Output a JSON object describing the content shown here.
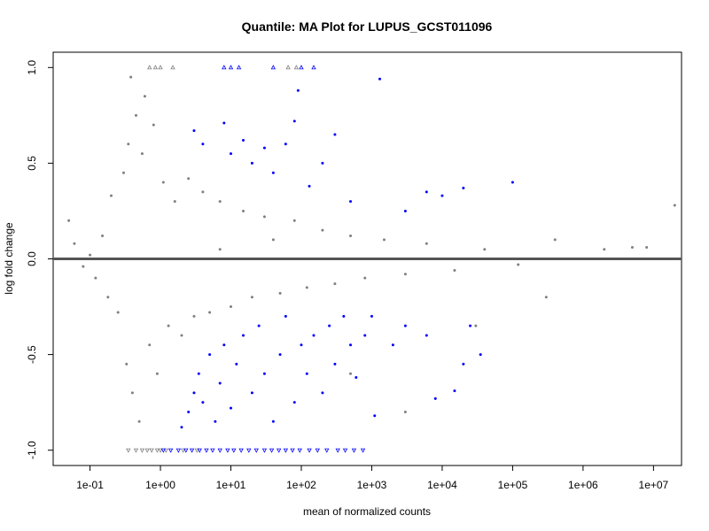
{
  "chart_data": {
    "type": "scatter",
    "title": "Quantile: MA Plot for LUPUS_GCST011096",
    "xlabel": "mean of normalized counts",
    "ylabel": "log fold change",
    "x_scale": "log",
    "xlim": [
      0.03,
      25000000
    ],
    "ylim": [
      -1.08,
      1.08
    ],
    "x_ticks": [
      {
        "value": 0.1,
        "label": "1e-01"
      },
      {
        "value": 1,
        "label": "1e+00"
      },
      {
        "value": 10,
        "label": "1e+01"
      },
      {
        "value": 100,
        "label": "1e+02"
      },
      {
        "value": 1000,
        "label": "1e+03"
      },
      {
        "value": 10000,
        "label": "1e+04"
      },
      {
        "value": 100000,
        "label": "1e+05"
      },
      {
        "value": 1000000,
        "label": "1e+06"
      },
      {
        "value": 10000000,
        "label": "1e+07"
      }
    ],
    "y_ticks": [
      {
        "value": -1.0,
        "label": "-1.0"
      },
      {
        "value": -0.5,
        "label": "-0.5"
      },
      {
        "value": 0.0,
        "label": "0.0"
      },
      {
        "value": 0.5,
        "label": "0.5"
      },
      {
        "value": 1.0,
        "label": "1.0"
      }
    ],
    "reference_line": {
      "y": 0,
      "color": "#555555"
    },
    "colors": {
      "nonsignificant": "#7f7f7f",
      "significant": "#0000ff",
      "reference_line": "#555555"
    },
    "grid": false,
    "legend": "none",
    "series": [
      {
        "points": [
          [
            0.05,
            0.2
          ],
          [
            0.06,
            0.08
          ],
          [
            0.08,
            -0.04
          ],
          [
            0.1,
            0.02
          ],
          [
            0.12,
            -0.1
          ],
          [
            0.15,
            0.12
          ],
          [
            0.18,
            -0.2
          ],
          [
            0.2,
            0.33
          ],
          [
            0.25,
            -0.28
          ],
          [
            0.3,
            0.45
          ],
          [
            0.33,
            -0.55
          ],
          [
            0.35,
            0.6
          ],
          [
            0.38,
            0.95
          ],
          [
            0.4,
            -0.7
          ],
          [
            0.45,
            0.75
          ],
          [
            0.5,
            -0.85
          ],
          [
            0.55,
            0.55
          ],
          [
            0.6,
            0.85
          ],
          [
            0.7,
            -0.45
          ],
          [
            0.8,
            0.7
          ],
          [
            0.9,
            -0.6
          ],
          [
            1.1,
            0.4
          ],
          [
            1.3,
            -0.35
          ],
          [
            1.6,
            0.3
          ],
          [
            2,
            -0.4
          ],
          [
            2.5,
            0.42
          ],
          [
            3,
            -0.3
          ],
          [
            4,
            0.35
          ],
          [
            5,
            -0.28
          ],
          [
            7,
            0.3
          ],
          [
            10,
            -0.25
          ],
          [
            15,
            0.25
          ],
          [
            20,
            -0.2
          ],
          [
            30,
            0.22
          ],
          [
            50,
            -0.18
          ],
          [
            80,
            0.2
          ],
          [
            120,
            -0.15
          ],
          [
            200,
            0.15
          ],
          [
            300,
            -0.13
          ],
          [
            500,
            0.12
          ],
          [
            800,
            -0.1
          ],
          [
            1500,
            0.1
          ],
          [
            3000,
            -0.08
          ],
          [
            6000,
            0.08
          ],
          [
            15000,
            -0.06
          ],
          [
            40000,
            0.05
          ],
          [
            120000,
            -0.03
          ],
          [
            400000,
            0.1
          ],
          [
            2000000,
            0.05
          ],
          [
            5000000,
            0.06
          ],
          [
            20000000,
            0.28
          ],
          [
            8000000,
            0.06
          ],
          [
            300000,
            -0.2
          ],
          [
            30000,
            -0.35
          ],
          [
            3000,
            -0.8
          ],
          [
            500,
            -0.6
          ],
          [
            40,
            0.1
          ],
          [
            7,
            0.05
          ]
        ]
      },
      {
        "points": [
          [
            2,
            -0.88
          ],
          [
            2.5,
            -0.8
          ],
          [
            3,
            -0.7
          ],
          [
            3.5,
            -0.6
          ],
          [
            4,
            -0.75
          ],
          [
            5,
            -0.5
          ],
          [
            6,
            -0.85
          ],
          [
            7,
            -0.65
          ],
          [
            8,
            -0.45
          ],
          [
            10,
            -0.78
          ],
          [
            12,
            -0.55
          ],
          [
            15,
            -0.4
          ],
          [
            20,
            -0.7
          ],
          [
            25,
            -0.35
          ],
          [
            30,
            -0.6
          ],
          [
            40,
            -0.85
          ],
          [
            50,
            -0.5
          ],
          [
            60,
            -0.3
          ],
          [
            80,
            -0.75
          ],
          [
            100,
            -0.45
          ],
          [
            120,
            -0.6
          ],
          [
            150,
            -0.4
          ],
          [
            200,
            -0.7
          ],
          [
            250,
            -0.35
          ],
          [
            300,
            -0.55
          ],
          [
            400,
            -0.3
          ],
          [
            500,
            -0.45
          ],
          [
            600,
            -0.62
          ],
          [
            800,
            -0.4
          ],
          [
            1000,
            -0.3
          ],
          [
            1100,
            -0.82
          ],
          [
            2000,
            -0.45
          ],
          [
            3000,
            -0.35
          ],
          [
            6000,
            -0.4
          ],
          [
            8000,
            -0.73
          ],
          [
            15000,
            -0.69
          ],
          [
            20000,
            -0.55
          ],
          [
            25000,
            -0.35
          ],
          [
            35000,
            -0.5
          ],
          [
            3,
            0.67
          ],
          [
            4,
            0.6
          ],
          [
            8,
            0.71
          ],
          [
            10,
            0.55
          ],
          [
            15,
            0.62
          ],
          [
            20,
            0.5
          ],
          [
            30,
            0.58
          ],
          [
            40,
            0.45
          ],
          [
            60,
            0.6
          ],
          [
            80,
            0.72
          ],
          [
            90,
            0.88
          ],
          [
            130,
            0.38
          ],
          [
            200,
            0.5
          ],
          [
            300,
            0.65
          ],
          [
            500,
            0.3
          ],
          [
            1300,
            0.94
          ],
          [
            3000,
            0.25
          ],
          [
            6000,
            0.35
          ],
          [
            10000,
            0.33
          ],
          [
            20000,
            0.37
          ],
          [
            100000,
            0.4
          ]
        ]
      },
      {
        "marker": "triangle-up",
        "points": [
          [
            0.7,
            1.0
          ],
          [
            0.85,
            1.0
          ],
          [
            1.0,
            1.0
          ],
          [
            1.5,
            1.0
          ],
          [
            65,
            1.0
          ],
          [
            85,
            1.0
          ]
        ]
      },
      {
        "marker": "triangle-up",
        "points": [
          [
            8,
            1.0
          ],
          [
            10,
            1.0
          ],
          [
            13,
            1.0
          ],
          [
            40,
            1.0
          ],
          [
            100,
            1.0
          ],
          [
            150,
            1.0
          ]
        ]
      },
      {
        "marker": "triangle-down",
        "points": [
          [
            0.35,
            -1.0
          ],
          [
            0.45,
            -1.0
          ],
          [
            0.55,
            -1.0
          ],
          [
            0.65,
            -1.0
          ],
          [
            0.75,
            -1.0
          ],
          [
            0.9,
            -1.0
          ],
          [
            1.0,
            -1.0
          ],
          [
            1.2,
            -1.0
          ],
          [
            2.1,
            -1.0
          ],
          [
            3.3,
            -1.0
          ]
        ]
      },
      {
        "marker": "triangle-down",
        "points": [
          [
            1.1,
            -1.0
          ],
          [
            1.4,
            -1.0
          ],
          [
            1.8,
            -1.0
          ],
          [
            2.3,
            -1.0
          ],
          [
            2.8,
            -1.0
          ],
          [
            3.6,
            -1.0
          ],
          [
            4.5,
            -1.0
          ],
          [
            5.5,
            -1.0
          ],
          [
            7,
            -1.0
          ],
          [
            9,
            -1.0
          ],
          [
            11,
            -1.0
          ],
          [
            14,
            -1.0
          ],
          [
            18,
            -1.0
          ],
          [
            23,
            -1.0
          ],
          [
            30,
            -1.0
          ],
          [
            38,
            -1.0
          ],
          [
            48,
            -1.0
          ],
          [
            60,
            -1.0
          ],
          [
            75,
            -1.0
          ],
          [
            95,
            -1.0
          ],
          [
            130,
            -1.0
          ],
          [
            170,
            -1.0
          ],
          [
            230,
            -1.0
          ],
          [
            330,
            -1.0
          ],
          [
            420,
            -1.0
          ],
          [
            560,
            -1.0
          ],
          [
            750,
            -1.0
          ]
        ]
      }
    ]
  }
}
